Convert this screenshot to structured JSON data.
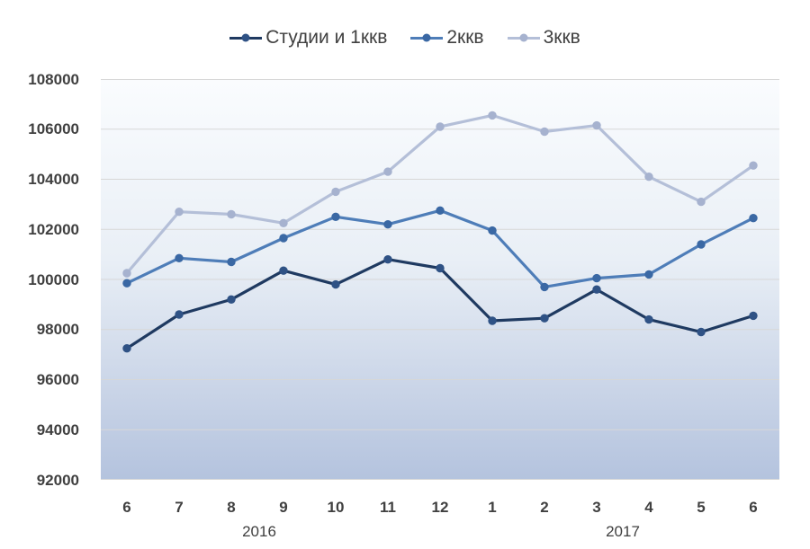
{
  "chart_data": {
    "type": "line",
    "title": "",
    "legend_position": "top",
    "grid": true,
    "categories": [
      "6",
      "7",
      "8",
      "9",
      "10",
      "11",
      "12",
      "1",
      "2",
      "3",
      "4",
      "5",
      "6"
    ],
    "year_groups": [
      {
        "label": "2016",
        "from_index": 0,
        "to_index": 6
      },
      {
        "label": "2017",
        "from_index": 7,
        "to_index": 12
      }
    ],
    "series": [
      {
        "name": "Студии и 1ккв",
        "line_color": "#1f3a61",
        "marker_color": "#2f5285",
        "values": [
          97250,
          98600,
          99200,
          100350,
          99800,
          100800,
          100450,
          98350,
          98450,
          99600,
          98400,
          97900,
          98550
        ]
      },
      {
        "name": "2ккв",
        "line_color": "#4e7db8",
        "marker_color": "#3a68a4",
        "values": [
          99850,
          100850,
          100700,
          101650,
          102500,
          102200,
          102750,
          101950,
          99700,
          100050,
          100200,
          101400,
          102450
        ]
      },
      {
        "name": "3ккв",
        "line_color": "#b4bfd8",
        "marker_color": "#a6b2cf",
        "values": [
          100250,
          102700,
          102600,
          102250,
          103500,
          104300,
          106100,
          106550,
          105900,
          106150,
          104100,
          103100,
          104550
        ]
      }
    ],
    "y_axis": {
      "min": 92000,
      "max": 108000,
      "step": 2000,
      "ticks": [
        108000,
        106000,
        104000,
        102000,
        100000,
        98000,
        96000,
        94000,
        92000
      ]
    },
    "plot_style": {
      "gridline_color": "#d7d7d7",
      "bg_gradient_top": "#fafcfe",
      "bg_gradient_mid": "#e9eff6",
      "bg_gradient_low": "#c9d4e7",
      "bg_gradient_bottom": "#b4c3de",
      "text_color": "#404040"
    }
  }
}
